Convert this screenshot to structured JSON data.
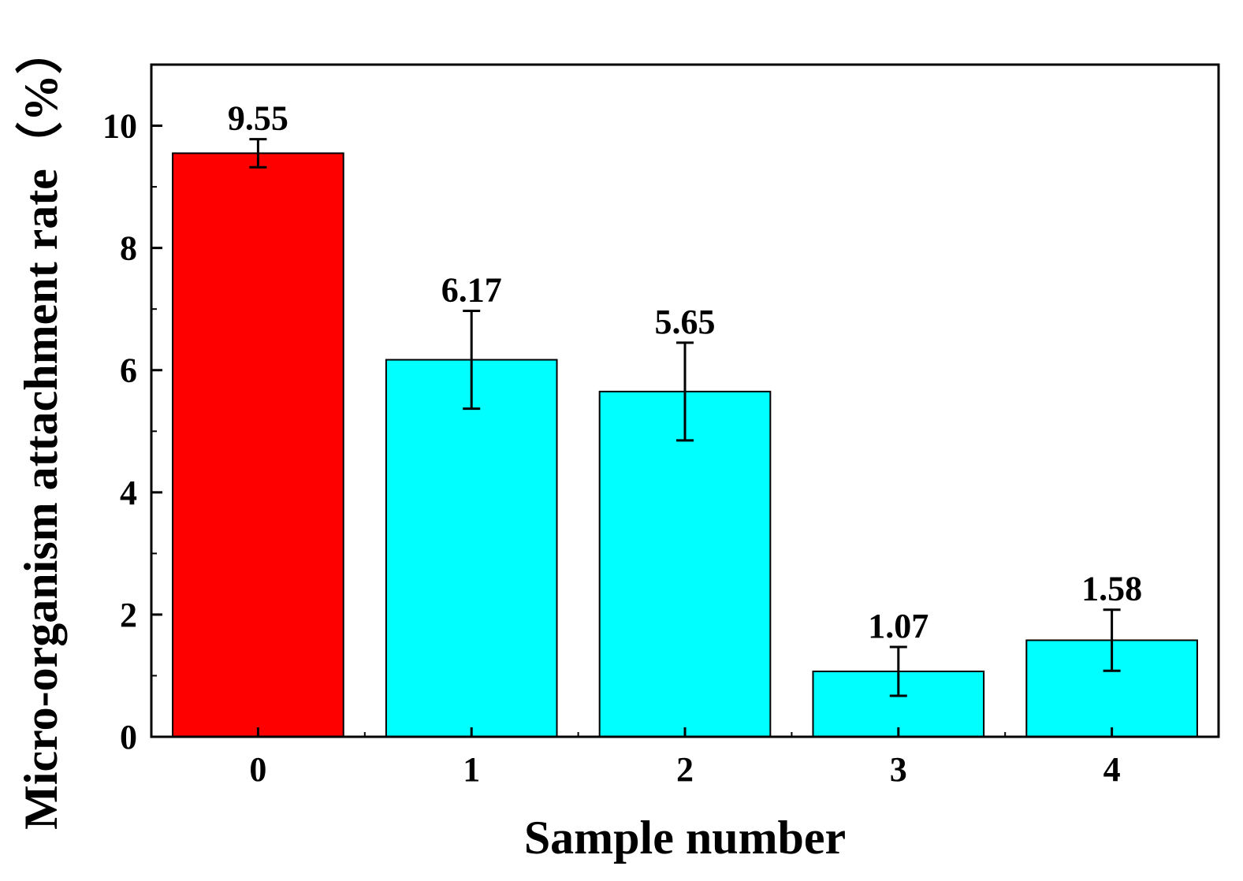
{
  "chart_data": {
    "type": "bar",
    "title": "",
    "xlabel": "Sample number",
    "ylabel": "Micro-organism attachment rate（%）",
    "categories": [
      "0",
      "1",
      "2",
      "3",
      "4"
    ],
    "values": [
      9.55,
      6.17,
      5.65,
      1.07,
      1.58
    ],
    "value_labels": [
      "9.55",
      "6.17",
      "5.65",
      "1.07",
      "1.58"
    ],
    "errors": [
      0.23,
      0.8,
      0.8,
      0.4,
      0.5
    ],
    "bar_colors": [
      "#ff0000",
      "#00ffff",
      "#00ffff",
      "#00ffff",
      "#00ffff"
    ],
    "ylim": [
      0,
      11
    ],
    "yticks": [
      0,
      2,
      4,
      6,
      8,
      10
    ],
    "ytick_labels": [
      "0",
      "2",
      "4",
      "6",
      "8",
      "10"
    ],
    "grid": false,
    "legend": "none"
  }
}
